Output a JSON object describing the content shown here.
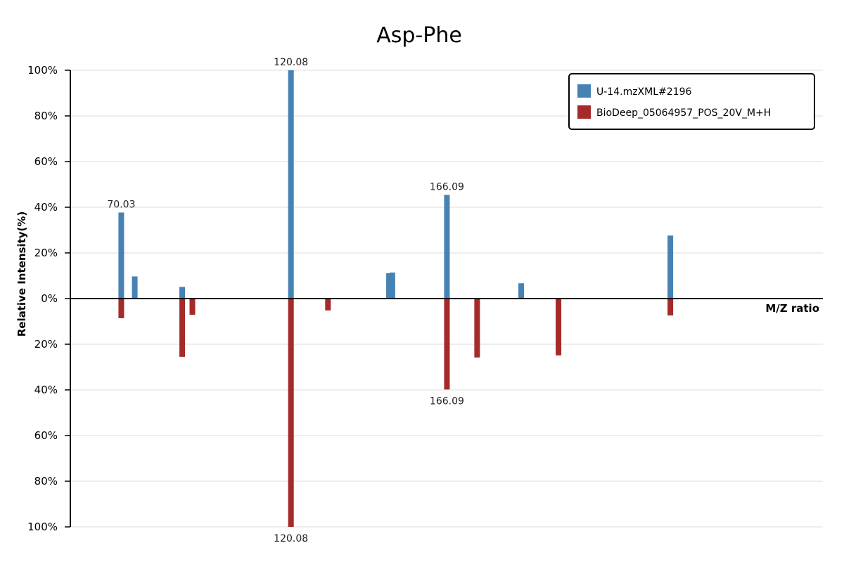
{
  "chart_data": {
    "type": "bar",
    "title": "Asp-Phe",
    "xlabel": "M/Z ratio",
    "ylabel": "Relative Intensity(%)",
    "ylim": [
      -100,
      100
    ],
    "grid": true,
    "legend_position": "top-right",
    "y_ticks": [
      "100%",
      "80%",
      "60%",
      "40%",
      "20%",
      "0%",
      "20%",
      "40%",
      "60%",
      "80%",
      "100%"
    ],
    "series": [
      {
        "name": "U-14.mzXML#2196",
        "color": "#4682b4",
        "direction": "up",
        "points": [
          {
            "x": 70.03,
            "y": 37.7,
            "label": "70.03"
          },
          {
            "x": 74.0,
            "y": 9.7,
            "label": ""
          },
          {
            "x": 88.0,
            "y": 5.1,
            "label": ""
          },
          {
            "x": 120.08,
            "y": 100,
            "label": "120.08"
          },
          {
            "x": 149.0,
            "y": 11.1,
            "label": ""
          },
          {
            "x": 150.0,
            "y": 11.4,
            "label": ""
          },
          {
            "x": 166.09,
            "y": 45.4,
            "label": "166.09"
          },
          {
            "x": 188.0,
            "y": 6.7,
            "label": ""
          },
          {
            "x": 232.0,
            "y": 27.6,
            "label": ""
          }
        ]
      },
      {
        "name": "BioDeep_05064957_POS_20V_M+H",
        "color": "#a52a2a",
        "direction": "down",
        "points": [
          {
            "x": 70.03,
            "y": 8.6,
            "label": ""
          },
          {
            "x": 88.0,
            "y": 25.5,
            "label": ""
          },
          {
            "x": 91.0,
            "y": 7.1,
            "label": ""
          },
          {
            "x": 120.08,
            "y": 100,
            "label": "120.08"
          },
          {
            "x": 131.0,
            "y": 5.2,
            "label": ""
          },
          {
            "x": 166.09,
            "y": 39.8,
            "label": "166.09"
          },
          {
            "x": 175.0,
            "y": 25.8,
            "label": ""
          },
          {
            "x": 199.0,
            "y": 24.9,
            "label": ""
          },
          {
            "x": 232.0,
            "y": 7.4,
            "label": ""
          }
        ]
      }
    ]
  }
}
